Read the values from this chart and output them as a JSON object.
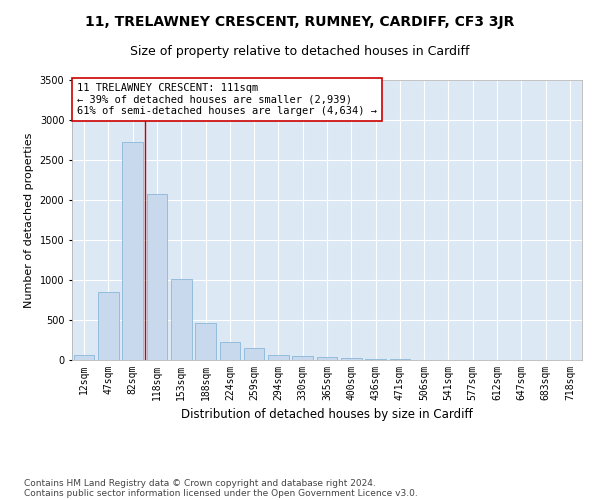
{
  "title1": "11, TRELAWNEY CRESCENT, RUMNEY, CARDIFF, CF3 3JR",
  "title2": "Size of property relative to detached houses in Cardiff",
  "xlabel": "Distribution of detached houses by size in Cardiff",
  "ylabel": "Number of detached properties",
  "categories": [
    "12sqm",
    "47sqm",
    "82sqm",
    "118sqm",
    "153sqm",
    "188sqm",
    "224sqm",
    "259sqm",
    "294sqm",
    "330sqm",
    "365sqm",
    "400sqm",
    "436sqm",
    "471sqm",
    "506sqm",
    "541sqm",
    "577sqm",
    "612sqm",
    "647sqm",
    "683sqm",
    "718sqm"
  ],
  "values": [
    60,
    850,
    2730,
    2070,
    1010,
    460,
    230,
    145,
    65,
    55,
    35,
    30,
    15,
    10,
    5,
    3,
    2,
    1,
    1,
    1,
    1
  ],
  "bar_color": "#c9d9ed",
  "bar_edgecolor": "#7bafd4",
  "vline_x": 2.5,
  "vline_color": "#cc0000",
  "annotation_line1": "11 TRELAWNEY CRESCENT: 111sqm",
  "annotation_line2": "← 39% of detached houses are smaller (2,939)",
  "annotation_line3": "61% of semi-detached houses are larger (4,634) →",
  "annotation_box_color": "#ffffff",
  "annotation_box_edgecolor": "#cc0000",
  "ylim": [
    0,
    3500
  ],
  "yticks": [
    0,
    500,
    1000,
    1500,
    2000,
    2500,
    3000,
    3500
  ],
  "grid_color": "#ffffff",
  "plot_bg_color": "#dce9f5",
  "footer1": "Contains HM Land Registry data © Crown copyright and database right 2024.",
  "footer2": "Contains public sector information licensed under the Open Government Licence v3.0.",
  "title1_fontsize": 10,
  "title2_fontsize": 9,
  "xlabel_fontsize": 8.5,
  "ylabel_fontsize": 8,
  "tick_fontsize": 7,
  "annotation_fontsize": 7.5,
  "footer_fontsize": 6.5
}
